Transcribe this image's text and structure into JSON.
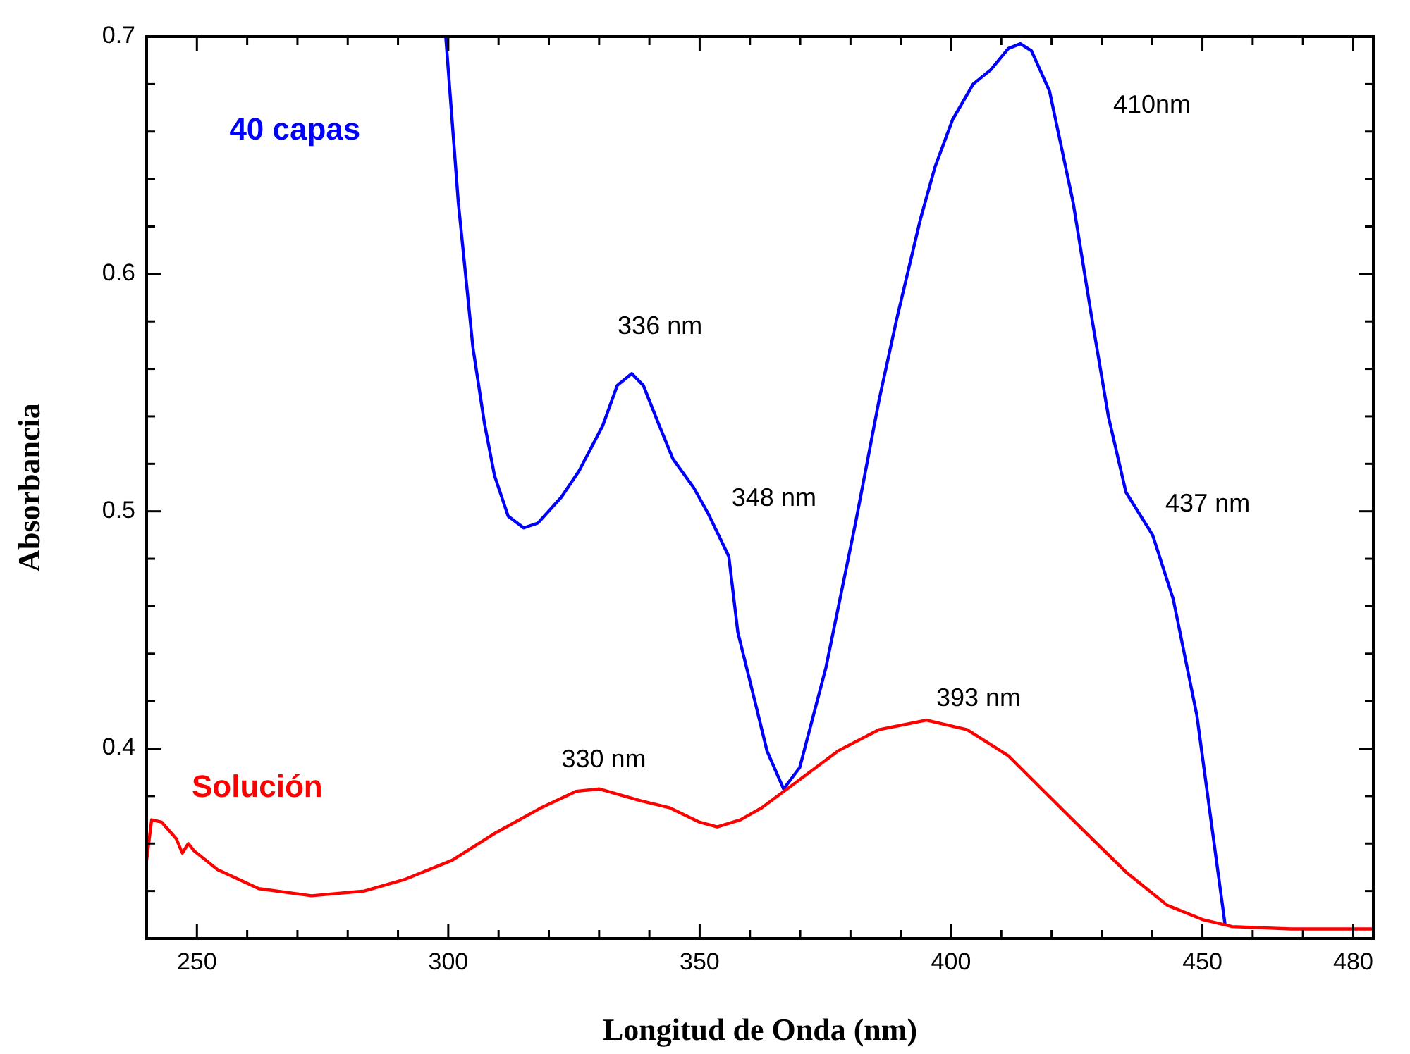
{
  "chart_data": {
    "type": "line",
    "xlabel": "Longitud de Onda (nm)",
    "ylabel": "Absorbancia",
    "xlim": [
      240,
      484
    ],
    "ylim": [
      0.32,
      0.7
    ],
    "xticks": [
      {
        "value": 250,
        "label": "250"
      },
      {
        "value": 260,
        "label": null
      },
      {
        "value": 270,
        "label": null
      },
      {
        "value": 280,
        "label": null
      },
      {
        "value": 290,
        "label": null
      },
      {
        "value": 300,
        "label": "300"
      },
      {
        "value": 310,
        "label": null
      },
      {
        "value": 320,
        "label": null
      },
      {
        "value": 330,
        "label": null
      },
      {
        "value": 340,
        "label": null
      },
      {
        "value": 350,
        "label": "350"
      },
      {
        "value": 360,
        "label": null
      },
      {
        "value": 370,
        "label": null
      },
      {
        "value": 380,
        "label": null
      },
      {
        "value": 390,
        "label": null
      },
      {
        "value": 400,
        "label": "400"
      },
      {
        "value": 410,
        "label": null
      },
      {
        "value": 420,
        "label": null
      },
      {
        "value": 430,
        "label": null
      },
      {
        "value": 440,
        "label": null
      },
      {
        "value": 450,
        "label": "450"
      },
      {
        "value": 460,
        "label": null
      },
      {
        "value": 470,
        "label": null
      },
      {
        "value": 480,
        "label": "480"
      }
    ],
    "yticks": [
      {
        "value": 0.34,
        "label": null
      },
      {
        "value": 0.36,
        "label": null
      },
      {
        "value": 0.38,
        "label": null
      },
      {
        "value": 0.4,
        "label": "0.4"
      },
      {
        "value": 0.42,
        "label": null
      },
      {
        "value": 0.44,
        "label": null
      },
      {
        "value": 0.46,
        "label": null
      },
      {
        "value": 0.48,
        "label": null
      },
      {
        "value": 0.5,
        "label": "0.5"
      },
      {
        "value": 0.52,
        "label": null
      },
      {
        "value": 0.54,
        "label": null
      },
      {
        "value": 0.56,
        "label": null
      },
      {
        "value": 0.58,
        "label": null
      },
      {
        "value": 0.6,
        "label": "0.6"
      },
      {
        "value": 0.62,
        "label": null
      },
      {
        "value": 0.64,
        "label": null
      },
      {
        "value": 0.66,
        "label": null
      },
      {
        "value": 0.68,
        "label": null
      },
      {
        "value": 0.7,
        "label": "0.7"
      }
    ],
    "grid": false,
    "legend": false,
    "marker": "none",
    "line_style": "solid",
    "series": [
      {
        "name": "40 capas",
        "color": "#0000ff",
        "x": [
          299.5,
          302,
          304.9,
          307.2,
          309.2,
          311.9,
          315,
          317.8,
          322.5,
          326,
          330.7,
          333.6,
          336.5,
          338.8,
          341.8,
          344.7,
          348.8,
          351.7,
          355.8,
          357.6,
          361.1,
          363.4,
          366.7,
          369.9,
          375.1,
          381,
          385.7,
          389.2,
          393.9,
          396.8,
          400.3,
          404.4,
          407.9,
          411.4,
          413.8,
          416,
          419.6,
          424.3,
          427.8,
          431.3,
          434.8,
          440.1,
          444.2,
          448.9,
          454.5
        ],
        "values": [
          0.7,
          0.63,
          0.569,
          0.537,
          0.515,
          0.498,
          0.493,
          0.495,
          0.506,
          0.517,
          0.536,
          0.553,
          0.558,
          0.553,
          0.537,
          0.522,
          0.51,
          0.499,
          0.481,
          0.449,
          0.419,
          0.399,
          0.383,
          0.392,
          0.434,
          0.495,
          0.547,
          0.581,
          0.623,
          0.645,
          0.665,
          0.68,
          0.686,
          0.695,
          0.697,
          0.694,
          0.677,
          0.63,
          0.584,
          0.54,
          0.508,
          0.49,
          0.463,
          0.414,
          0.326
        ]
      },
      {
        "name": "Solución",
        "color": "#ff0000",
        "x": [
          240,
          241,
          243,
          245.9,
          247.1,
          248.3,
          249.4,
          254.1,
          262.3,
          272.8,
          283.3,
          291.5,
          300.8,
          309,
          318.4,
          325.4,
          330.1,
          338.3,
          344.1,
          350,
          353.5,
          358.1,
          362.3,
          369.3,
          377.5,
          385.7,
          395.1,
          403.2,
          411.4,
          418.5,
          426.6,
          434.8,
          443,
          450,
          455.9,
          467.6,
          483.7
        ],
        "values": [
          0.353,
          0.37,
          0.369,
          0.362,
          0.356,
          0.36,
          0.357,
          0.349,
          0.341,
          0.338,
          0.34,
          0.345,
          0.353,
          0.364,
          0.375,
          0.382,
          0.383,
          0.378,
          0.375,
          0.369,
          0.367,
          0.37,
          0.375,
          0.386,
          0.399,
          0.408,
          0.412,
          0.408,
          0.397,
          0.382,
          0.365,
          0.348,
          0.334,
          0.328,
          0.325,
          0.324,
          0.324
        ]
      }
    ],
    "annotations": [
      {
        "text": "336 nm",
        "x": 336.5,
        "y": 0.558
      },
      {
        "text": "348 nm",
        "x": 348.8,
        "y": 0.51
      },
      "410nm",
      {
        "text": "437 nm",
        "x": 434.8,
        "y": 0.508
      },
      {
        "text": "393 nm",
        "x": 395.1,
        "y": 0.412
      },
      {
        "text": "330 nm",
        "x": 330.1,
        "y": 0.383
      }
    ]
  }
}
